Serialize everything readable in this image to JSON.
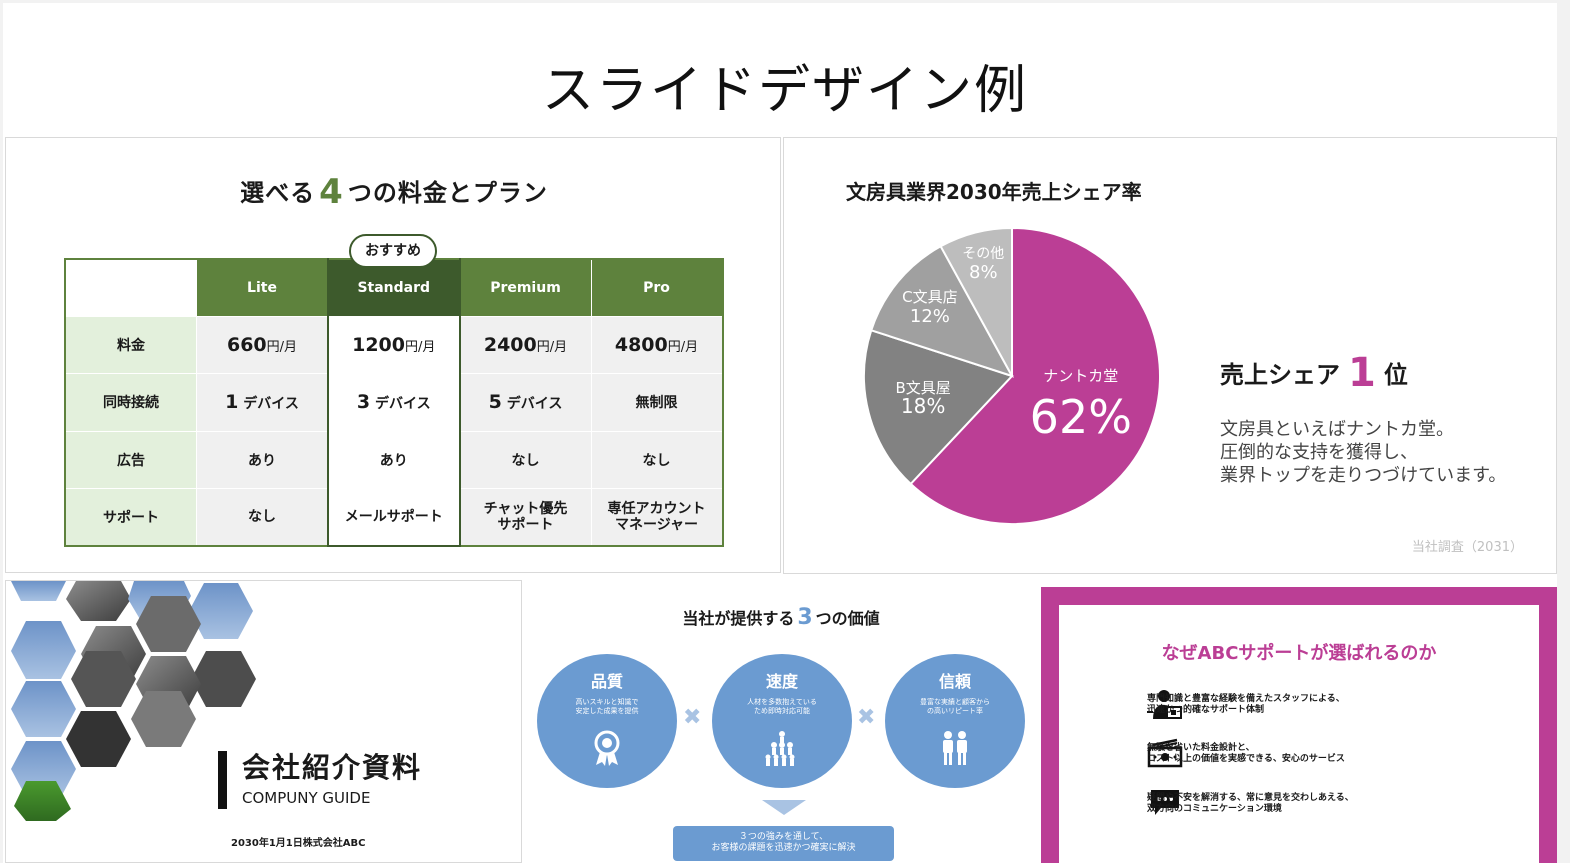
{
  "page_title": "スライドデザイン例",
  "plans": {
    "title_pre": "選べる",
    "title_num": "4",
    "title_post": "つの料金とプラン",
    "recommend_badge": "おすすめ",
    "columns": [
      "Lite",
      "Standard",
      "Premium",
      "Pro"
    ],
    "rows": [
      {
        "label": "料金",
        "cells": [
          {
            "num": "660",
            "unit": "円/月"
          },
          {
            "num": "1200",
            "unit": "円/月"
          },
          {
            "num": "2400",
            "unit": "円/月"
          },
          {
            "num": "4800",
            "unit": "円/月"
          }
        ]
      },
      {
        "label": "同時接続",
        "cells": [
          {
            "num": "1",
            "unit": "デバイス"
          },
          {
            "num": "3",
            "unit": "デバイス"
          },
          {
            "num": "5",
            "unit": "デバイス"
          },
          {
            "num": "",
            "unit": "無制限"
          }
        ]
      },
      {
        "label": "広告",
        "cells": [
          {
            "num": "",
            "unit": "あり"
          },
          {
            "num": "",
            "unit": "あり"
          },
          {
            "num": "",
            "unit": "なし"
          },
          {
            "num": "",
            "unit": "なし"
          }
        ]
      },
      {
        "label": "サポート",
        "cells": [
          {
            "num": "",
            "unit": "なし"
          },
          {
            "num": "",
            "unit": "メールサポート"
          },
          {
            "num": "",
            "unit": "チャット優先\nサポート"
          },
          {
            "num": "",
            "unit": "専任アカウント\nマネージャー"
          }
        ]
      }
    ]
  },
  "share": {
    "title": "文房具業界2030年売上シェア率",
    "head_pre": "売上シェア",
    "head_num": "1",
    "head_post": "位",
    "description": "文房具といえばナントカ堂。\n圧倒的な支持を獲得し、\n業界トップを走りつづけています。",
    "source": "当社調査（2031）"
  },
  "chart_data": {
    "type": "pie",
    "slices": [
      {
        "label": "ナントカ堂",
        "value": 62,
        "display": "62%",
        "color": "#bb3e95"
      },
      {
        "label": "B文具屋",
        "value": 18,
        "display": "18%",
        "color": "#828282"
      },
      {
        "label": "C文具店",
        "value": 12,
        "display": "12%",
        "color": "#a0a0a0"
      },
      {
        "label": "その他",
        "value": 8,
        "display": "8%",
        "color": "#bdbdbd"
      }
    ]
  },
  "guide": {
    "title": "会社紹介資料",
    "subtitle": "COMPUNY GUIDE",
    "date": "2030年1月1日株式会社ABC"
  },
  "values": {
    "title_pre": "当社が提供する",
    "title_num": "3",
    "title_post": "つの価値",
    "items": [
      {
        "title": "品質",
        "desc": "高いスキルと知識で\n安定した成果を提供",
        "icon": "award-icon"
      },
      {
        "title": "速度",
        "desc": "人材を多数抱えている\nため即時対応可能",
        "icon": "team-icon"
      },
      {
        "title": "信頼",
        "desc": "豊富な実績と顧客から\nの高いリピート率",
        "icon": "people-icon"
      }
    ],
    "summary": "３つの強みを通して、\nお客様の課題を迅速かつ確実に解決"
  },
  "why": {
    "title": "なぜABCサポートが選ばれるのか",
    "items": [
      {
        "icon": "staff-icon",
        "text": "専門知識と豊富な経験を備えたスタッフによる、\n迅速かつ的確なサポート体制"
      },
      {
        "icon": "money-icon",
        "text": "無駄を省いた料金設計と、\nコスト以上の価値を実感できる、安心のサービス"
      },
      {
        "icon": "chat-icon",
        "text": "疑問や不安を解消する、常に意見を交わしあえる、\n双方向のコミュニケーション環境"
      }
    ]
  },
  "colors": {
    "green": "#5e823d",
    "dark_green": "#3d5a2c",
    "magenta": "#bb3e95",
    "blue": "#6b9bd1"
  }
}
